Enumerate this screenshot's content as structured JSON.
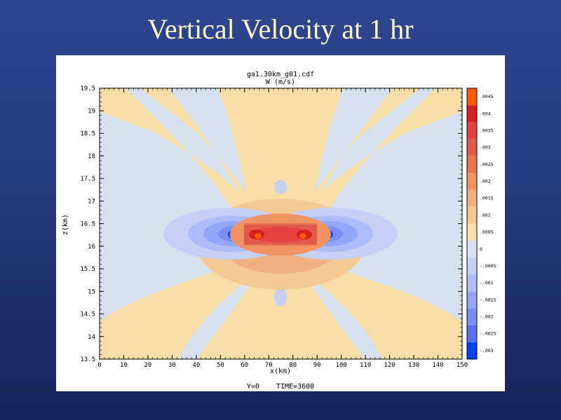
{
  "slide": {
    "title": "Vertical Velocity at 1 hr"
  },
  "chart_data": {
    "type": "heatmap",
    "title": "ga1.30km_g01.cdf",
    "subtitle": "W (m/s)",
    "xlabel": "x(km)",
    "ylabel": "z(km)",
    "footer": "Y=0    TIME=3600",
    "xlim": [
      0,
      150
    ],
    "ylim": [
      13.5,
      19.5
    ],
    "x_ticks": [
      "0",
      "10",
      "20",
      "30",
      "40",
      "50",
      "60",
      "70",
      "80",
      "90",
      "100",
      "110",
      "120",
      "130",
      "140",
      "150"
    ],
    "y_ticks": [
      "13.5",
      "14",
      "14.5",
      "15",
      "15.5",
      "16",
      "16.5",
      "17",
      "17.5",
      "18",
      "18.5",
      "19",
      "19.5"
    ],
    "colorbar": {
      "levels": [
        "-.003",
        "-.0025",
        "-.002",
        "-.0015",
        "-.001",
        "-.0005",
        "0",
        ".0005",
        ".001",
        ".0015",
        ".002",
        ".0025",
        ".003",
        ".0035",
        ".004",
        ".0045"
      ],
      "colors": [
        "#0040ff",
        "#5b6ef0",
        "#7a8ef5",
        "#94a6f7",
        "#aebcfa",
        "#c5d0f7",
        "#d5e1ef",
        "#f6dea6",
        "#f3ca93",
        "#f1b07f",
        "#ef9460",
        "#e8754f",
        "#e05a4a",
        "#e4413f",
        "#d81f1f",
        "#ff5a00"
      ]
    },
    "features": [
      {
        "name": "positive-core",
        "x_range": [
          60,
          90
        ],
        "z_range": [
          16.1,
          16.5
        ],
        "max": 0.0045
      },
      {
        "name": "negative-left",
        "x_center": 55,
        "z_center": 16.25,
        "min": -0.003
      },
      {
        "name": "negative-right",
        "x_center": 95,
        "z_center": 16.25,
        "min": -0.003
      }
    ]
  }
}
